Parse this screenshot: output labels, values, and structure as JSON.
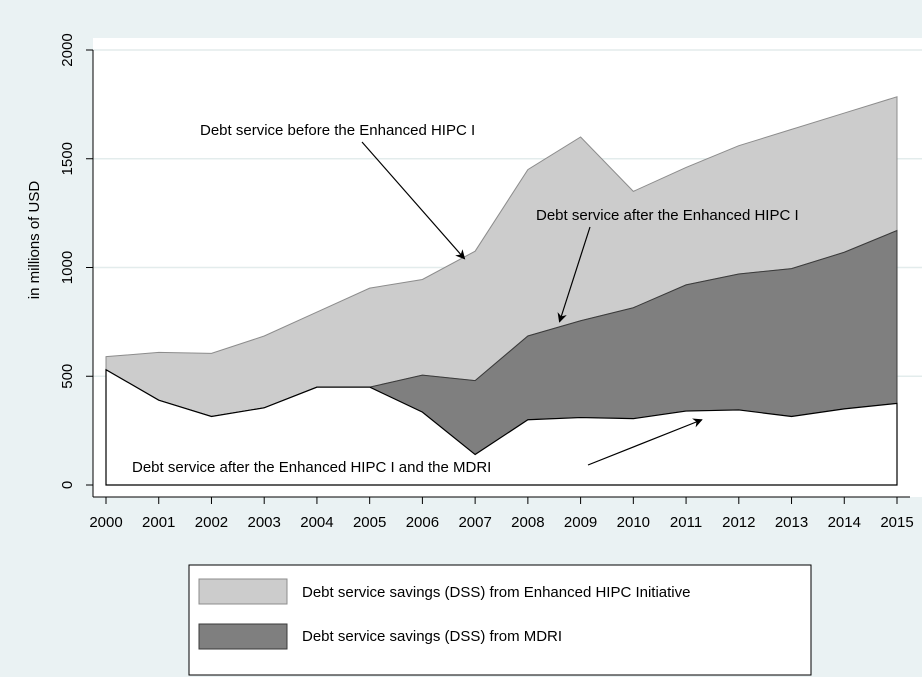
{
  "chart_data": {
    "type": "area",
    "title": "",
    "xlabel": "",
    "ylabel": "in millions of USD",
    "x": [
      2000,
      2001,
      2002,
      2003,
      2004,
      2005,
      2006,
      2007,
      2008,
      2009,
      2010,
      2011,
      2012,
      2013,
      2014,
      2015
    ],
    "xlim": [
      2000,
      2015
    ],
    "ylim": [
      0,
      2000
    ],
    "yticks": [
      0,
      500,
      1000,
      1500,
      2000
    ],
    "grid": "horizontal",
    "legend_position": "bottom",
    "lines": {
      "before_enhanced_hipc": [
        590,
        610,
        605,
        685,
        795,
        905,
        945,
        1075,
        1450,
        1600,
        1350,
        1460,
        1560,
        1635,
        1710,
        1785
      ],
      "after_enhanced_hipc": [
        530,
        390,
        315,
        355,
        450,
        450,
        505,
        480,
        685,
        755,
        815,
        920,
        970,
        995,
        1070,
        1170
      ],
      "after_enhanced_hipc_and_mdri": [
        530,
        390,
        315,
        355,
        450,
        450,
        335,
        140,
        300,
        310,
        305,
        340,
        345,
        315,
        350,
        375
      ]
    },
    "series": [
      {
        "name": "Debt service savings (DSS) from Enhanced HIPC Initiative",
        "color": "#cccccc"
      },
      {
        "name": "Debt service savings (DSS) from MDRI",
        "color": "#7f7f7f"
      }
    ],
    "annotations": [
      {
        "text": "Debt service before the Enhanced HIPC I",
        "target": [
          2006.8,
          1040
        ]
      },
      {
        "text": "Debt service after the Enhanced HIPC I",
        "target": [
          2008.6,
          750
        ]
      },
      {
        "text": "Debt service after the Enhanced HIPC I and the MDRI",
        "target": [
          2011.3,
          300
        ]
      }
    ]
  }
}
